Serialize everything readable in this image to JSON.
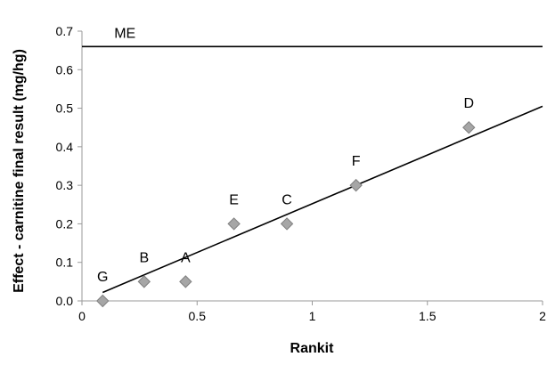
{
  "chart_data": {
    "type": "scatter",
    "title": "",
    "xlabel": "Rankit",
    "ylabel": "Effect - carnitine final result (mg/hg)",
    "xlim": [
      0,
      2
    ],
    "ylim": [
      0,
      0.7
    ],
    "x_ticks": [
      {
        "value": 0,
        "label": "0"
      },
      {
        "value": 0.5,
        "label": "0.5"
      },
      {
        "value": 1,
        "label": "1"
      },
      {
        "value": 1.5,
        "label": "1.5"
      },
      {
        "value": 2,
        "label": "2"
      }
    ],
    "y_ticks": [
      {
        "value": 0,
        "label": "0.0"
      },
      {
        "value": 0.1,
        "label": "0.1"
      },
      {
        "value": 0.2,
        "label": "0.2"
      },
      {
        "value": 0.3,
        "label": "0.3"
      },
      {
        "value": 0.4,
        "label": "0.4"
      },
      {
        "value": 0.5,
        "label": "0.5"
      },
      {
        "value": 0.6,
        "label": "0.6"
      },
      {
        "value": 0.7,
        "label": "0.7"
      }
    ],
    "grid": false,
    "points": [
      {
        "label": "G",
        "x": 0.09,
        "y": 0.0
      },
      {
        "label": "B",
        "x": 0.27,
        "y": 0.05
      },
      {
        "label": "A",
        "x": 0.45,
        "y": 0.05
      },
      {
        "label": "E",
        "x": 0.66,
        "y": 0.2
      },
      {
        "label": "C",
        "x": 0.89,
        "y": 0.2
      },
      {
        "label": "F",
        "x": 1.19,
        "y": 0.3
      },
      {
        "label": "D",
        "x": 1.68,
        "y": 0.45
      }
    ],
    "fit_line": {
      "x1": 0.09,
      "y1": 0.022,
      "x2": 2.0,
      "y2": 0.505
    },
    "reference_line": {
      "label": "ME",
      "y": 0.66
    },
    "colors": {
      "marker_fill": "#a6a6a6",
      "marker_stroke": "#7f7f7f",
      "line": "#000000",
      "axis": "#9a9a9a",
      "text": "#000000"
    }
  }
}
